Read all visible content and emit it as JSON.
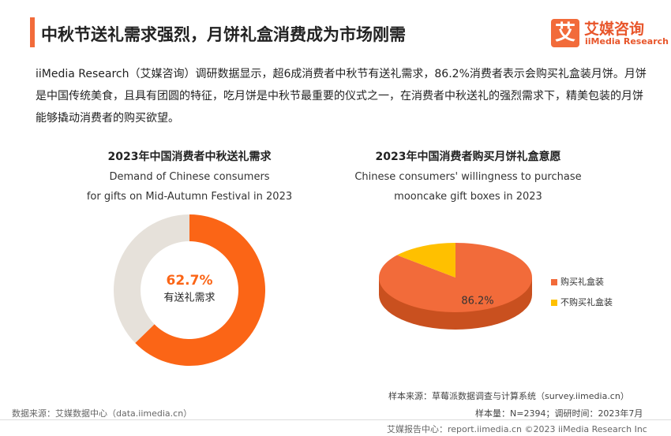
{
  "header": {
    "title": "中秋节送礼需求强烈，月饼礼盒消费成为市场刚需",
    "logo": {
      "icon": "艾",
      "name": "艾媒咨询",
      "english": "iiMedia Research"
    }
  },
  "paragraph": "iiMedia Research（艾媒咨询）调研数据显示，超6成消费者中秋节有送礼需求，86.2%消费者表示会购买礼盒装月饼。月饼是中国传统美食，且具有团圆的特征，吃月饼是中秋节最重要的仪式之一，在消费者中秋送礼的强烈需求下，精美包装的月饼能够撬动消费者的购买欲望。",
  "chart_data": [
    {
      "type": "donut",
      "title": "2023年中国消费者中秋送礼需求",
      "subtitle": [
        "Demand of Chinese consumers",
        "for gifts on Mid-Autumn Festival in 2023"
      ],
      "categories": [
        "有送礼需求",
        null
      ],
      "values": [
        62.7,
        37.3
      ],
      "value_labels": [
        "62.7%",
        null
      ],
      "colors": [
        "#fb6516",
        "#e6e1da"
      ]
    },
    {
      "type": "pie3d",
      "title": "2023年中国消费者购买月饼礼盒意愿",
      "subtitle": [
        "Chinese consumers' willingness to purchase",
        "mooncake gift boxes in 2023"
      ],
      "categories": [
        "购买礼盒装",
        "不购买礼盒装"
      ],
      "values": [
        86.2,
        13.8
      ],
      "value_labels": [
        "86.2%",
        null
      ],
      "colors": [
        "#f26b3a",
        "#ffc000"
      ]
    }
  ],
  "footer": {
    "source": "数据来源：艾媒数据中心（data.iimedia.cn）",
    "sample_source": "样本来源：草莓派数据调查与计算系统（survey.iimedia.cn）",
    "sample_size": "样本量：N=2394；调研时间：2023年7月",
    "report_center": "艾媒报告中心：report.iimedia.cn ©2023  iiMedia Research  Inc"
  }
}
